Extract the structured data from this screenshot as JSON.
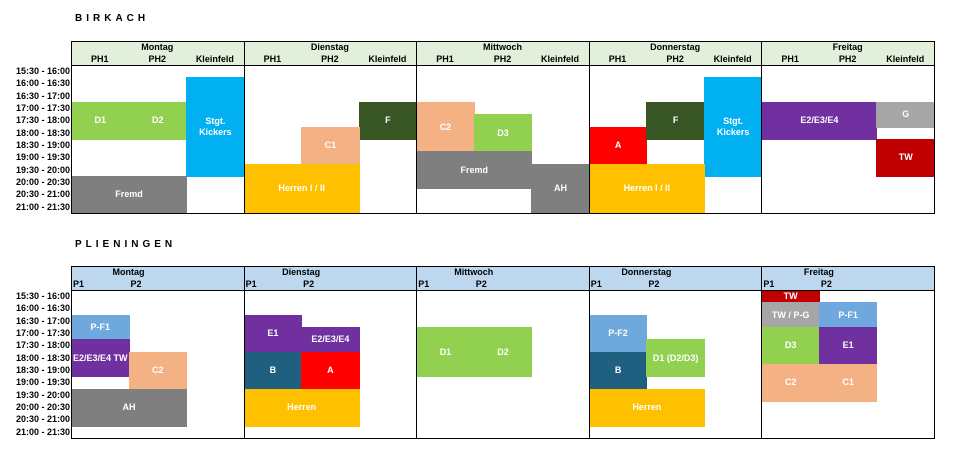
{
  "sections": [
    {
      "title": "BIRKACH",
      "header_color": "#e2efda",
      "days": [
        {
          "name": "Montag",
          "columns": [
            "PH1",
            "PH2",
            "Kleinfeld"
          ]
        },
        {
          "name": "Dienstag",
          "columns": [
            "PH1",
            "PH2",
            "Kleinfeld"
          ]
        },
        {
          "name": "Mittwoch",
          "columns": [
            "PH1",
            "PH2",
            "Kleinfeld"
          ]
        },
        {
          "name": "Donnerstag",
          "columns": [
            "PH1",
            "PH2",
            "Kleinfeld"
          ]
        },
        {
          "name": "Freitag",
          "columns": [
            "PH1",
            "PH2",
            "Kleinfeld"
          ]
        }
      ],
      "times": [
        "15:30 - 16:00",
        "16:00 - 16:30",
        "16:30 - 17:00",
        "17:00 - 17:30",
        "17:30 - 18:00",
        "18:00 - 18:30",
        "18:30 - 19:00",
        "19:00 - 19:30",
        "19:30 - 20:00",
        "20:00 - 20:30",
        "20:30 - 21:00",
        "21:00 - 21:30"
      ],
      "blocks": [
        {
          "text": "D1",
          "color": "#92d050",
          "column": 0,
          "columns": 1,
          "start": 3,
          "slots": 3
        },
        {
          "text": "D2",
          "color": "#92d050",
          "column": 1,
          "columns": 1,
          "start": 3,
          "slots": 3
        },
        {
          "text": "Stgt. Kickers",
          "color": "#00b0f0",
          "column": 2,
          "columns": 1,
          "start": 1,
          "slots": 8
        },
        {
          "text": "Fremd",
          "color": "#7f7f7f",
          "column": 0,
          "columns": 2,
          "start": 9,
          "slots": 3
        },
        {
          "text": "F",
          "color": "#375623",
          "column": 5,
          "columns": 1,
          "start": 3,
          "slots": 3
        },
        {
          "text": "C1",
          "color": "#f4b183",
          "column": 4,
          "columns": 1,
          "start": 5,
          "slots": 3
        },
        {
          "text": "Herren I / II",
          "color": "#ffc000",
          "column": 3,
          "columns": 2,
          "start": 8,
          "slots": 4
        },
        {
          "text": "C2",
          "color": "#f4b183",
          "column": 6,
          "columns": 1,
          "start": 3,
          "slots": 4
        },
        {
          "text": "D3",
          "color": "#92d050",
          "column": 7,
          "columns": 1,
          "start": 4,
          "slots": 3
        },
        {
          "text": "Fremd",
          "color": "#7f7f7f",
          "column": 6,
          "columns": 2,
          "start": 7,
          "slots": 3
        },
        {
          "text": "AH",
          "color": "#7f7f7f",
          "column": 8,
          "columns": 1,
          "start": 8,
          "slots": 4
        },
        {
          "text": "A",
          "color": "#ff0000",
          "column": 9,
          "columns": 1,
          "start": 5,
          "slots": 3
        },
        {
          "text": "F",
          "color": "#375623",
          "column": 10,
          "columns": 1,
          "start": 3,
          "slots": 3
        },
        {
          "text": "Stgt. Kickers",
          "color": "#00b0f0",
          "column": 11,
          "columns": 1,
          "start": 1,
          "slots": 8
        },
        {
          "text": "Herren I / II",
          "color": "#ffc000",
          "column": 9,
          "columns": 2,
          "start": 8,
          "slots": 4
        },
        {
          "text": "E2/E3/E4",
          "color": "#7030a0",
          "column": 12,
          "columns": 2,
          "start": 3,
          "slots": 3
        },
        {
          "text": "G",
          "color": "#a6a6a6",
          "column": 14,
          "columns": 1,
          "start": 3,
          "slots": 2
        },
        {
          "text": "TW",
          "color": "#c00000",
          "column": 14,
          "columns": 1,
          "start": 6,
          "slots": 3
        }
      ]
    },
    {
      "title": "PLIENINGEN",
      "header_color": "#bdd7ee",
      "days": [
        {
          "name": "Montag",
          "columns": [
            "P1",
            "P2"
          ]
        },
        {
          "name": "Dienstag",
          "columns": [
            "P1",
            "P2"
          ]
        },
        {
          "name": "Mittwoch",
          "columns": [
            "P1",
            "P2"
          ]
        },
        {
          "name": "Donnerstag",
          "columns": [
            "P1",
            "P2"
          ]
        },
        {
          "name": "Freitag",
          "columns": [
            "P1",
            "P2"
          ]
        }
      ],
      "times": [
        "15:30 - 16:00",
        "16:00 - 16:30",
        "16:30 - 17:00",
        "17:00 - 17:30",
        "17:30 - 18:00",
        "18:00 - 18:30",
        "18:30 - 19:00",
        "19:00 - 19:30",
        "19:30 - 20:00",
        "20:00 - 20:30",
        "20:30 - 21:00",
        "21:00 - 21:30"
      ],
      "blocks": [
        {
          "text": "P-F1",
          "color": "#6fa8dc",
          "column": 0,
          "columns": 1,
          "start": 2,
          "slots": 2
        },
        {
          "text": "E2/E3/E4 TW",
          "color": "#7030a0",
          "column": 0,
          "columns": 1,
          "start": 4,
          "slots": 3
        },
        {
          "text": "C2",
          "color": "#f4b183",
          "column": 1,
          "columns": 1,
          "start": 5,
          "slots": 3
        },
        {
          "text": "AH",
          "color": "#7f7f7f",
          "column": 0,
          "columns": 2,
          "start": 8,
          "slots": 3
        },
        {
          "text": "E1",
          "color": "#7030a0",
          "column": 3,
          "columns": 1,
          "start": 2,
          "slots": 3
        },
        {
          "text": "E2/E3/E4",
          "color": "#7030a0",
          "column": 4,
          "columns": 1,
          "start": 3,
          "slots": 2
        },
        {
          "text": "B",
          "color": "#1f5f7f",
          "column": 3,
          "columns": 1,
          "start": 5,
          "slots": 3
        },
        {
          "text": "A",
          "color": "#ff0000",
          "column": 4,
          "columns": 1,
          "start": 5,
          "slots": 3
        },
        {
          "text": "Herren",
          "color": "#ffc000",
          "column": 3,
          "columns": 2,
          "start": 8,
          "slots": 3
        },
        {
          "text": "D1",
          "color": "#92d050",
          "column": 6,
          "columns": 1,
          "start": 3,
          "slots": 4
        },
        {
          "text": "D2",
          "color": "#92d050",
          "column": 7,
          "columns": 1,
          "start": 3,
          "slots": 4
        },
        {
          "text": "P-F2",
          "color": "#6fa8dc",
          "column": 9,
          "columns": 1,
          "start": 2,
          "slots": 3
        },
        {
          "text": "B",
          "color": "#1f5f7f",
          "column": 9,
          "columns": 1,
          "start": 5,
          "slots": 3
        },
        {
          "text": "D1 (D2/D3)",
          "color": "#92d050",
          "column": 10,
          "columns": 1,
          "start": 4,
          "slots": 3
        },
        {
          "text": "Herren",
          "color": "#ffc000",
          "column": 9,
          "columns": 2,
          "start": 8,
          "slots": 3
        },
        {
          "text": "TW",
          "color": "#c00000",
          "column": 12,
          "columns": 1,
          "start": 0,
          "slots": 1
        },
        {
          "text": "TW / P-G",
          "color": "#a6a6a6",
          "column": 12,
          "columns": 1,
          "start": 1,
          "slots": 2
        },
        {
          "text": "P-F1",
          "color": "#6fa8dc",
          "column": 13,
          "columns": 1,
          "start": 1,
          "slots": 2
        },
        {
          "text": "D3",
          "color": "#92d050",
          "column": 12,
          "columns": 1,
          "start": 3,
          "slots": 3
        },
        {
          "text": "E1",
          "color": "#7030a0",
          "column": 13,
          "columns": 1,
          "start": 3,
          "slots": 3
        },
        {
          "text": "C2",
          "color": "#f4b183",
          "column": 12,
          "columns": 1,
          "start": 6,
          "slots": 3
        },
        {
          "text": "C1",
          "color": "#f4b183",
          "column": 13,
          "columns": 1,
          "start": 6,
          "slots": 3
        }
      ]
    }
  ]
}
